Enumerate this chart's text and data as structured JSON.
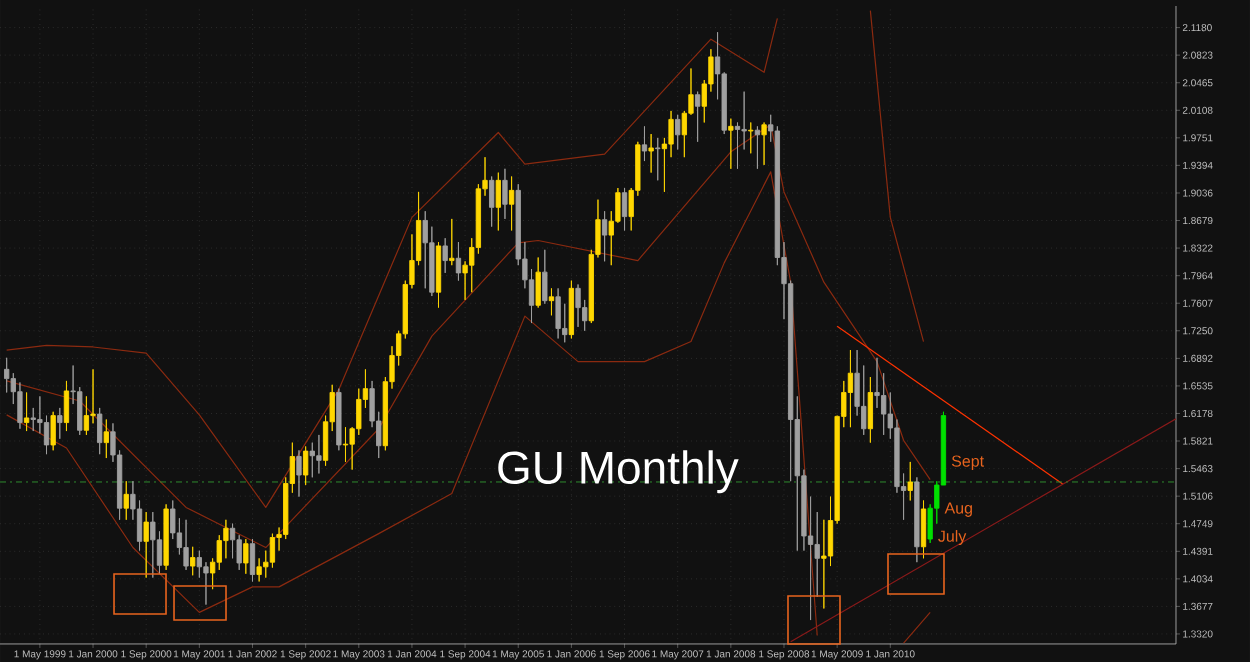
{
  "chart_data": {
    "type": "candlestick",
    "title": "GU Monthly",
    "x": [
      "1998-12",
      "1999-01",
      "1999-02",
      "1999-03",
      "1999-04",
      "1999-05",
      "1999-06",
      "1999-07",
      "1999-08",
      "1999-09",
      "1999-10",
      "1999-11",
      "1999-12",
      "2000-01",
      "2000-02",
      "2000-03",
      "2000-04",
      "2000-05",
      "2000-06",
      "2000-07",
      "2000-08",
      "2000-09",
      "2000-10",
      "2000-11",
      "2000-12",
      "2001-01",
      "2001-02",
      "2001-03",
      "2001-04",
      "2001-05",
      "2001-06",
      "2001-07",
      "2001-08",
      "2001-09",
      "2001-10",
      "2001-11",
      "2001-12",
      "2002-01",
      "2002-02",
      "2002-03",
      "2002-04",
      "2002-05",
      "2002-06",
      "2002-07",
      "2002-08",
      "2002-09",
      "2002-10",
      "2002-11",
      "2002-12",
      "2003-01",
      "2003-02",
      "2003-03",
      "2003-04",
      "2003-05",
      "2003-06",
      "2003-07",
      "2003-08",
      "2003-09",
      "2003-10",
      "2003-11",
      "2003-12",
      "2004-01",
      "2004-02",
      "2004-03",
      "2004-04",
      "2004-05",
      "2004-06",
      "2004-07",
      "2004-08",
      "2004-09",
      "2004-10",
      "2004-11",
      "2004-12",
      "2005-01",
      "2005-02",
      "2005-03",
      "2005-04",
      "2005-05",
      "2005-06",
      "2005-07",
      "2005-08",
      "2005-09",
      "2005-10",
      "2005-11",
      "2005-12",
      "2006-01",
      "2006-02",
      "2006-03",
      "2006-04",
      "2006-05",
      "2006-06",
      "2006-07",
      "2006-08",
      "2006-09",
      "2006-10",
      "2006-11",
      "2006-12",
      "2007-01",
      "2007-02",
      "2007-03",
      "2007-04",
      "2007-05",
      "2007-06",
      "2007-07",
      "2007-08",
      "2007-09",
      "2007-10",
      "2007-11",
      "2007-12",
      "2008-01",
      "2008-02",
      "2008-03",
      "2008-04",
      "2008-05",
      "2008-06",
      "2008-07",
      "2008-08",
      "2008-09",
      "2008-10",
      "2008-11",
      "2008-12",
      "2009-01",
      "2009-02",
      "2009-03",
      "2009-04",
      "2009-05",
      "2009-06",
      "2009-07",
      "2009-08",
      "2009-09",
      "2009-10",
      "2009-11",
      "2009-12",
      "2010-01",
      "2010-02",
      "2010-03",
      "2010-04",
      "2010-05",
      "2010-06",
      "2010-07",
      "2010-08",
      "2010-09"
    ],
    "ohlc": [
      [
        1.675,
        1.69,
        1.645,
        1.663
      ],
      [
        1.663,
        1.67,
        1.63,
        1.646
      ],
      [
        1.646,
        1.658,
        1.598,
        1.606
      ],
      [
        1.606,
        1.645,
        1.595,
        1.612
      ],
      [
        1.612,
        1.625,
        1.595,
        1.61
      ],
      [
        1.61,
        1.64,
        1.592,
        1.606
      ],
      [
        1.606,
        1.615,
        1.565,
        1.577
      ],
      [
        1.577,
        1.62,
        1.57,
        1.615
      ],
      [
        1.615,
        1.625,
        1.585,
        1.606
      ],
      [
        1.606,
        1.66,
        1.595,
        1.647
      ],
      [
        1.647,
        1.68,
        1.63,
        1.646
      ],
      [
        1.646,
        1.652,
        1.59,
        1.596
      ],
      [
        1.596,
        1.64,
        1.59,
        1.615
      ],
      [
        1.615,
        1.675,
        1.605,
        1.617
      ],
      [
        1.617,
        1.625,
        1.565,
        1.58
      ],
      [
        1.58,
        1.61,
        1.56,
        1.594
      ],
      [
        1.594,
        1.605,
        1.555,
        1.564
      ],
      [
        1.564,
        1.57,
        1.48,
        1.495
      ],
      [
        1.495,
        1.53,
        1.48,
        1.513
      ],
      [
        1.513,
        1.53,
        1.48,
        1.494
      ],
      [
        1.494,
        1.505,
        1.44,
        1.452
      ],
      [
        1.452,
        1.49,
        1.405,
        1.477
      ],
      [
        1.477,
        1.49,
        1.405,
        1.454
      ],
      [
        1.454,
        1.465,
        1.41,
        1.421
      ],
      [
        1.421,
        1.5,
        1.415,
        1.494
      ],
      [
        1.494,
        1.505,
        1.455,
        1.463
      ],
      [
        1.463,
        1.482,
        1.435,
        1.444
      ],
      [
        1.444,
        1.48,
        1.415,
        1.42
      ],
      [
        1.42,
        1.445,
        1.408,
        1.431
      ],
      [
        1.431,
        1.44,
        1.405,
        1.419
      ],
      [
        1.419,
        1.425,
        1.37,
        1.411
      ],
      [
        1.411,
        1.43,
        1.39,
        1.425
      ],
      [
        1.425,
        1.46,
        1.415,
        1.453
      ],
      [
        1.453,
        1.48,
        1.43,
        1.469
      ],
      [
        1.469,
        1.475,
        1.43,
        1.454
      ],
      [
        1.454,
        1.46,
        1.415,
        1.424
      ],
      [
        1.424,
        1.455,
        1.41,
        1.449
      ],
      [
        1.449,
        1.455,
        1.4,
        1.409
      ],
      [
        1.409,
        1.43,
        1.4,
        1.419
      ],
      [
        1.419,
        1.44,
        1.405,
        1.425
      ],
      [
        1.425,
        1.462,
        1.418,
        1.457
      ],
      [
        1.457,
        1.47,
        1.44,
        1.461
      ],
      [
        1.461,
        1.535,
        1.455,
        1.527
      ],
      [
        1.527,
        1.58,
        1.515,
        1.562
      ],
      [
        1.562,
        1.57,
        1.51,
        1.538
      ],
      [
        1.538,
        1.575,
        1.525,
        1.569
      ],
      [
        1.569,
        1.58,
        1.535,
        1.563
      ],
      [
        1.563,
        1.59,
        1.54,
        1.557
      ],
      [
        1.557,
        1.615,
        1.55,
        1.607
      ],
      [
        1.607,
        1.655,
        1.595,
        1.645
      ],
      [
        1.645,
        1.65,
        1.57,
        1.577
      ],
      [
        1.577,
        1.6,
        1.555,
        1.578
      ],
      [
        1.578,
        1.6,
        1.545,
        1.598
      ],
      [
        1.598,
        1.65,
        1.59,
        1.636
      ],
      [
        1.636,
        1.675,
        1.625,
        1.65
      ],
      [
        1.65,
        1.66,
        1.6,
        1.608
      ],
      [
        1.608,
        1.62,
        1.56,
        1.576
      ],
      [
        1.576,
        1.665,
        1.57,
        1.659
      ],
      [
        1.659,
        1.705,
        1.65,
        1.693
      ],
      [
        1.693,
        1.725,
        1.68,
        1.721
      ],
      [
        1.721,
        1.79,
        1.715,
        1.785
      ],
      [
        1.785,
        1.85,
        1.78,
        1.816
      ],
      [
        1.816,
        1.905,
        1.81,
        1.868
      ],
      [
        1.868,
        1.88,
        1.78,
        1.839
      ],
      [
        1.839,
        1.86,
        1.77,
        1.775
      ],
      [
        1.775,
        1.84,
        1.755,
        1.835
      ],
      [
        1.835,
        1.845,
        1.8,
        1.816
      ],
      [
        1.816,
        1.87,
        1.81,
        1.819
      ],
      [
        1.819,
        1.84,
        1.79,
        1.8
      ],
      [
        1.8,
        1.815,
        1.765,
        1.81
      ],
      [
        1.81,
        1.845,
        1.775,
        1.833
      ],
      [
        1.833,
        1.915,
        1.825,
        1.909
      ],
      [
        1.909,
        1.95,
        1.9,
        1.92
      ],
      [
        1.92,
        1.925,
        1.86,
        1.885
      ],
      [
        1.885,
        1.93,
        1.855,
        1.92
      ],
      [
        1.92,
        1.935,
        1.87,
        1.889
      ],
      [
        1.889,
        1.925,
        1.855,
        1.907
      ],
      [
        1.907,
        1.915,
        1.81,
        1.818
      ],
      [
        1.818,
        1.84,
        1.78,
        1.791
      ],
      [
        1.791,
        1.805,
        1.735,
        1.758
      ],
      [
        1.758,
        1.82,
        1.755,
        1.801
      ],
      [
        1.801,
        1.83,
        1.76,
        1.764
      ],
      [
        1.764,
        1.78,
        1.745,
        1.769
      ],
      [
        1.769,
        1.78,
        1.715,
        1.728
      ],
      [
        1.728,
        1.76,
        1.71,
        1.72
      ],
      [
        1.72,
        1.79,
        1.715,
        1.78
      ],
      [
        1.78,
        1.785,
        1.73,
        1.755
      ],
      [
        1.755,
        1.765,
        1.725,
        1.738
      ],
      [
        1.738,
        1.83,
        1.735,
        1.824
      ],
      [
        1.824,
        1.895,
        1.82,
        1.869
      ],
      [
        1.869,
        1.88,
        1.815,
        1.849
      ],
      [
        1.849,
        1.88,
        1.81,
        1.867
      ],
      [
        1.867,
        1.91,
        1.865,
        1.904
      ],
      [
        1.904,
        1.91,
        1.855,
        1.873
      ],
      [
        1.873,
        1.91,
        1.855,
        1.907
      ],
      [
        1.907,
        1.97,
        1.9,
        1.966
      ],
      [
        1.966,
        1.99,
        1.945,
        1.958
      ],
      [
        1.958,
        1.98,
        1.93,
        1.962
      ],
      [
        1.962,
        1.975,
        1.92,
        1.961
      ],
      [
        1.961,
        1.975,
        1.905,
        1.967
      ],
      [
        1.967,
        2.01,
        1.95,
        1.999
      ],
      [
        1.999,
        2.005,
        1.96,
        1.979
      ],
      [
        1.979,
        2.01,
        1.95,
        2.007
      ],
      [
        2.007,
        2.065,
        2.005,
        2.031
      ],
      [
        2.031,
        2.035,
        1.97,
        2.016
      ],
      [
        2.016,
        2.05,
        1.995,
        2.045
      ],
      [
        2.045,
        2.09,
        2.035,
        2.08
      ],
      [
        2.08,
        2.112,
        2.025,
        2.058
      ],
      [
        2.058,
        2.06,
        1.98,
        1.985
      ],
      [
        1.985,
        2.0,
        1.935,
        1.99
      ],
      [
        1.99,
        1.995,
        1.935,
        1.986
      ],
      [
        1.986,
        2.035,
        1.96,
        1.984
      ],
      [
        1.984,
        1.995,
        1.955,
        1.985
      ],
      [
        1.985,
        1.99,
        1.935,
        1.979
      ],
      [
        1.979,
        1.995,
        1.94,
        1.992
      ],
      [
        1.992,
        2.005,
        1.97,
        1.984
      ],
      [
        1.984,
        1.99,
        1.81,
        1.82
      ],
      [
        1.82,
        1.84,
        1.74,
        1.786
      ],
      [
        1.786,
        1.79,
        1.53,
        1.61
      ],
      [
        1.61,
        1.64,
        1.44,
        1.537
      ],
      [
        1.537,
        1.545,
        1.44,
        1.459
      ],
      [
        1.459,
        1.51,
        1.35,
        1.448
      ],
      [
        1.448,
        1.49,
        1.38,
        1.43
      ],
      [
        1.43,
        1.48,
        1.365,
        1.433
      ],
      [
        1.433,
        1.51,
        1.42,
        1.479
      ],
      [
        1.479,
        1.615,
        1.475,
        1.614
      ],
      [
        1.614,
        1.66,
        1.6,
        1.645
      ],
      [
        1.645,
        1.7,
        1.6,
        1.67
      ],
      [
        1.67,
        1.7,
        1.615,
        1.627
      ],
      [
        1.627,
        1.68,
        1.59,
        1.598
      ],
      [
        1.598,
        1.665,
        1.58,
        1.645
      ],
      [
        1.645,
        1.69,
        1.625,
        1.641
      ],
      [
        1.641,
        1.67,
        1.59,
        1.617
      ],
      [
        1.617,
        1.645,
        1.585,
        1.599
      ],
      [
        1.599,
        1.61,
        1.515,
        1.523
      ],
      [
        1.523,
        1.54,
        1.48,
        1.518
      ],
      [
        1.518,
        1.555,
        1.505,
        1.529
      ],
      [
        1.529,
        1.535,
        1.425,
        1.445
      ],
      [
        1.445,
        1.505,
        1.43,
        1.494
      ],
      [
        1.455,
        1.5,
        1.45,
        1.495
      ],
      [
        1.495,
        1.53,
        1.475,
        1.525
      ],
      [
        1.525,
        1.62,
        1.525,
        1.615
      ]
    ],
    "colors": [
      "#a0a0a0",
      "#a0a0a0",
      "#a0a0a0",
      "#ffd700",
      "#a0a0a0",
      "#a0a0a0",
      "#a0a0a0",
      "#ffd700",
      "#a0a0a0",
      "#ffd700",
      "#a0a0a0",
      "#a0a0a0",
      "#ffd700",
      "#ffd700",
      "#a0a0a0",
      "#ffd700",
      "#a0a0a0",
      "#a0a0a0",
      "#ffd700",
      "#a0a0a0",
      "#a0a0a0",
      "#ffd700",
      "#a0a0a0",
      "#a0a0a0",
      "#ffd700",
      "#a0a0a0",
      "#a0a0a0",
      "#a0a0a0",
      "#ffd700",
      "#a0a0a0",
      "#a0a0a0",
      "#ffd700",
      "#ffd700",
      "#ffd700",
      "#a0a0a0",
      "#a0a0a0",
      "#ffd700",
      "#a0a0a0",
      "#ffd700",
      "#ffd700",
      "#ffd700",
      "#ffd700",
      "#ffd700",
      "#ffd700",
      "#a0a0a0",
      "#ffd700",
      "#a0a0a0",
      "#a0a0a0",
      "#ffd700",
      "#ffd700",
      "#a0a0a0",
      "#ffd700",
      "#ffd700",
      "#ffd700",
      "#ffd700",
      "#a0a0a0",
      "#a0a0a0",
      "#ffd700",
      "#ffd700",
      "#ffd700",
      "#ffd700",
      "#ffd700",
      "#ffd700",
      "#a0a0a0",
      "#a0a0a0",
      "#ffd700",
      "#a0a0a0",
      "#ffd700",
      "#a0a0a0",
      "#ffd700",
      "#ffd700",
      "#ffd700",
      "#ffd700",
      "#a0a0a0",
      "#ffd700",
      "#a0a0a0",
      "#ffd700",
      "#a0a0a0",
      "#a0a0a0",
      "#a0a0a0",
      "#ffd700",
      "#a0a0a0",
      "#ffd700",
      "#a0a0a0",
      "#a0a0a0",
      "#ffd700",
      "#a0a0a0",
      "#a0a0a0",
      "#ffd700",
      "#ffd700",
      "#a0a0a0",
      "#ffd700",
      "#ffd700",
      "#a0a0a0",
      "#ffd700",
      "#ffd700",
      "#a0a0a0",
      "#ffd700",
      "#a0a0a0",
      "#ffd700",
      "#ffd700",
      "#a0a0a0",
      "#ffd700",
      "#ffd700",
      "#a0a0a0",
      "#ffd700",
      "#ffd700",
      "#a0a0a0",
      "#a0a0a0",
      "#ffd700",
      "#a0a0a0",
      "#a0a0a0",
      "#ffd700",
      "#a0a0a0",
      "#ffd700",
      "#a0a0a0",
      "#a0a0a0",
      "#a0a0a0",
      "#a0a0a0",
      "#a0a0a0",
      "#a0a0a0",
      "#a0a0a0",
      "#a0a0a0",
      "#ffd700",
      "#ffd700",
      "#ffd700",
      "#ffd700",
      "#ffd700",
      "#a0a0a0",
      "#a0a0a0",
      "#ffd700",
      "#a0a0a0",
      "#a0a0a0",
      "#a0a0a0",
      "#a0a0a0",
      "#a0a0a0",
      "#ffd700",
      "#a0a0a0",
      "#ffd700",
      "#00e000",
      "#00e000",
      "#00e000"
    ],
    "series": [
      {
        "type": "line",
        "color": "#8b2a10",
        "x": [
          "1998-12",
          "1999-06",
          "2000-01",
          "2000-09",
          "2001-05",
          "2002-03",
          "2003-02",
          "2004-01",
          "2005-02",
          "2005-06",
          "2006-06",
          "2007-10",
          "2008-06",
          "2008-08",
          "2009-01",
          "2009-10",
          "2010-01",
          "2010-06"
        ],
        "values": [
          1.7,
          1.706,
          1.704,
          1.696,
          1.616,
          1.496,
          1.649,
          1.872,
          1.982,
          1.941,
          1.954,
          2.103,
          2.06,
          2.13,
          null,
          2.14,
          1.872,
          1.711
        ]
      },
      {
        "type": "line",
        "color": "#8b2a10",
        "x": [
          "1998-12",
          "1999-11",
          "2001-03",
          "2002-03",
          "2003-08",
          "2004-04",
          "2005-05",
          "2005-08",
          "2006-11",
          "2008-01",
          "2008-07",
          "2008-09",
          "2009-03",
          "2009-11",
          "2010-03",
          "2010-07"
        ],
        "values": [
          1.66,
          1.634,
          1.496,
          1.444,
          1.598,
          1.718,
          1.839,
          1.842,
          1.816,
          1.957,
          1.992,
          1.905,
          1.788,
          1.685,
          1.583,
          1.532
        ]
      },
      {
        "type": "line",
        "color": "#8b2a10",
        "x": [
          "1998-12",
          "1999-09",
          "2000-07",
          "2001-05",
          "2002-01",
          "2002-05",
          "2003-08",
          "2004-07",
          "2005-06",
          "2006-02",
          "2006-12",
          "2007-07",
          "2007-12",
          "2008-07",
          "2008-10",
          "2009-02",
          "2009-08",
          "2010-03",
          "2010-07"
        ],
        "values": [
          1.616,
          1.573,
          1.444,
          1.36,
          1.393,
          1.393,
          1.462,
          1.514,
          1.744,
          1.685,
          1.685,
          1.711,
          1.813,
          1.931,
          1.788,
          1.33,
          null,
          1.32,
          1.36
        ]
      },
      {
        "type": "line",
        "color": "#ff3300",
        "x": [
          "2009-05",
          "2012-03"
        ],
        "values": [
          1.731,
          1.526
        ]
      },
      {
        "type": "line",
        "color": "#8b1a1a",
        "x": [
          "2008-10",
          "2013-08"
        ],
        "values": [
          1.322,
          1.611
        ]
      }
    ],
    "ref_lines": [
      {
        "axis": "y",
        "value": 1.529,
        "color": "#2e8b2e",
        "line_style": "dashed"
      }
    ],
    "annotations": [
      {
        "text": "Sept",
        "x": "2010-09",
        "y": 1.554
      },
      {
        "text": "Aug",
        "x": "2010-08",
        "y": 1.493
      },
      {
        "text": "July",
        "x": "2010-07",
        "y": 1.457
      }
    ],
    "xlim": [
      "1998-11",
      "2013-08"
    ],
    "xticks": [
      {
        "value": "1999-05",
        "label": "1 May 1999"
      },
      {
        "value": "2000-01",
        "label": "1 Jan 2000"
      },
      {
        "value": "2000-09",
        "label": "1 Sep 2000"
      },
      {
        "value": "2001-05",
        "label": "1 May 2001"
      },
      {
        "value": "2002-01",
        "label": "1 Jan 2002"
      },
      {
        "value": "2002-09",
        "label": "1 Sep 2002"
      },
      {
        "value": "2003-05",
        "label": "1 May 2003"
      },
      {
        "value": "2004-01",
        "label": "1 Jan 2004"
      },
      {
        "value": "2004-09",
        "label": "1 Sep 2004"
      },
      {
        "value": "2005-05",
        "label": "1 May 2005"
      },
      {
        "value": "2006-01",
        "label": "1 Jan 2006"
      },
      {
        "value": "2006-09",
        "label": "1 Sep 2006"
      },
      {
        "value": "2007-05",
        "label": "1 May 2007"
      },
      {
        "value": "2008-01",
        "label": "1 Jan 2008"
      },
      {
        "value": "2008-09",
        "label": "1 Sep 2008"
      },
      {
        "value": "2009-05",
        "label": "1 May 2009"
      },
      {
        "value": "2010-01",
        "label": "1 Jan 2010"
      }
    ],
    "ylim": [
      1.319,
      2.146
    ],
    "yticks": [
      {
        "value": 2.118,
        "label": "2.1180"
      },
      {
        "value": 2.0823,
        "label": "2.0823"
      },
      {
        "value": 2.0465,
        "label": "2.0465"
      },
      {
        "value": 2.0108,
        "label": "2.0108"
      },
      {
        "value": 1.9751,
        "label": "1.9751"
      },
      {
        "value": 1.9394,
        "label": "1.9394"
      },
      {
        "value": 1.9036,
        "label": "1.9036"
      },
      {
        "value": 1.8679,
        "label": "1.8679"
      },
      {
        "value": 1.8322,
        "label": "1.8322"
      },
      {
        "value": 1.7964,
        "label": "1.7964"
      },
      {
        "value": 1.7607,
        "label": "1.7607"
      },
      {
        "value": 1.725,
        "label": "1.7250"
      },
      {
        "value": 1.6892,
        "label": "1.6892"
      },
      {
        "value": 1.6535,
        "label": "1.6535"
      },
      {
        "value": 1.6178,
        "label": "1.6178"
      },
      {
        "value": 1.5821,
        "label": "1.5821"
      },
      {
        "value": 1.5463,
        "label": "1.5463"
      },
      {
        "value": 1.5106,
        "label": "1.5106"
      },
      {
        "value": 1.4749,
        "label": "1.4749"
      },
      {
        "value": 1.4391,
        "label": "1.4391"
      },
      {
        "value": 1.4034,
        "label": "1.4034"
      },
      {
        "value": 1.3677,
        "label": "1.3677"
      },
      {
        "value": 1.332,
        "label": "1.3320"
      }
    ],
    "grid": true
  }
}
